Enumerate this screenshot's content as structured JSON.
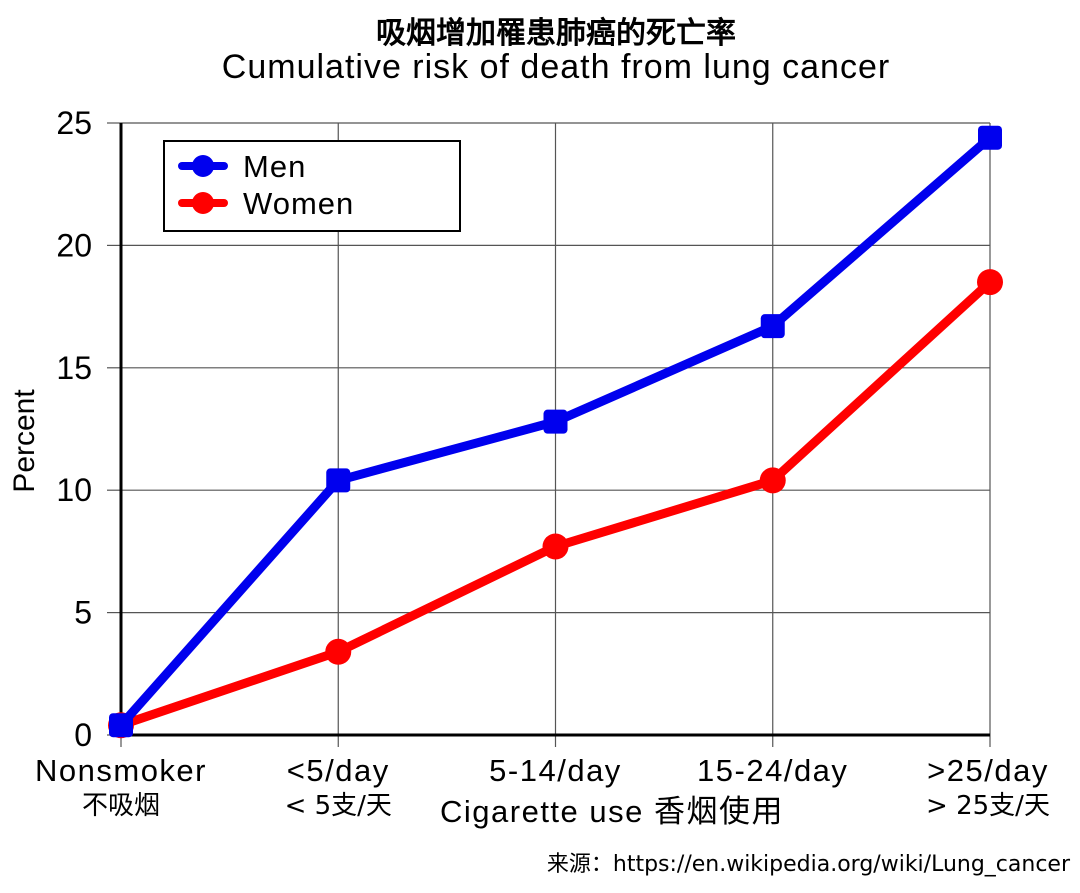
{
  "title": {
    "cn": "吸烟增加罹患肺癌的死亡率",
    "en": "Cumulative risk of death from lung cancer"
  },
  "axes": {
    "ylabel": "Percent",
    "xlabel": "Cigarette use 香烟使用",
    "yticks": [
      "0",
      "5",
      "10",
      "15",
      "20",
      "25"
    ],
    "xticks": [
      {
        "en": "Nonsmoker",
        "cn": "不吸烟"
      },
      {
        "en": "<5/day",
        "cn": "< 5支/天"
      },
      {
        "en": "5-14/day",
        "cn": ""
      },
      {
        "en": "15-24/day",
        "cn": ""
      },
      {
        "en": ">25/day",
        "cn": "> 25支/天"
      }
    ]
  },
  "legend": {
    "men": "Men",
    "women": "Women"
  },
  "source": "来源：https://en.wikipedia.org/wiki/Lung_cancer",
  "colors": {
    "men": "#0000ee",
    "women": "#ff0000",
    "grid": "#555555",
    "axis": "#000000"
  },
  "chart_data": {
    "type": "line",
    "title": "吸烟增加罹患肺癌的死亡率 / Cumulative risk of death from lung cancer",
    "xlabel": "Cigarette use 香烟使用",
    "ylabel": "Percent",
    "categories": [
      "Nonsmoker",
      "<5/day",
      "5-14/day",
      "15-24/day",
      ">25/day"
    ],
    "series": [
      {
        "name": "Men",
        "marker": "square",
        "color": "#0000ee",
        "values": [
          0.4,
          10.4,
          12.8,
          16.7,
          24.4
        ]
      },
      {
        "name": "Women",
        "marker": "circle",
        "color": "#ff0000",
        "values": [
          0.4,
          3.4,
          7.7,
          10.4,
          18.5
        ]
      }
    ],
    "ylim": [
      0,
      25
    ],
    "yticks": [
      0,
      5,
      10,
      15,
      20,
      25
    ],
    "grid": true,
    "legend_position": "upper left"
  }
}
